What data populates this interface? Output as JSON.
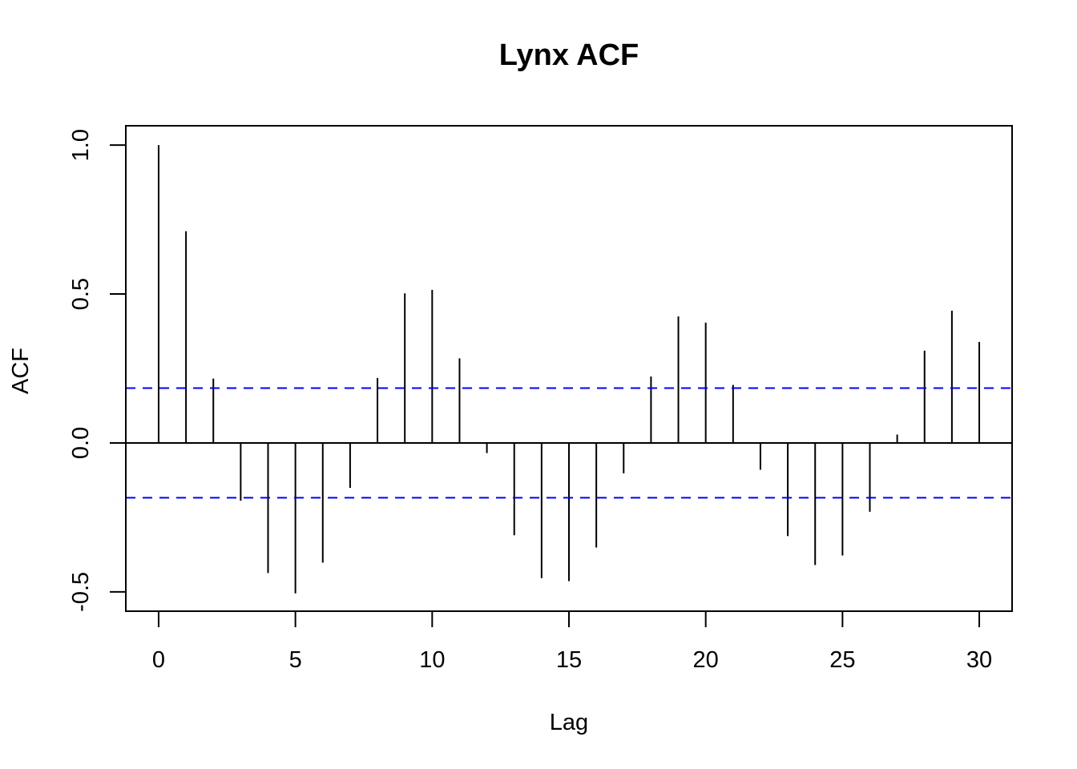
{
  "chart_data": {
    "type": "bar",
    "title": "Lynx ACF",
    "xlabel": "Lag",
    "ylabel": "ACF",
    "xlim": [
      -1.2,
      31.2
    ],
    "ylim": [
      -0.565,
      1.065
    ],
    "x_ticks": [
      0,
      5,
      10,
      15,
      20,
      25,
      30
    ],
    "x_tick_labels": [
      "0",
      "5",
      "10",
      "15",
      "20",
      "25",
      "30"
    ],
    "y_ticks": [
      -0.5,
      0.0,
      0.5,
      1.0
    ],
    "y_tick_labels": [
      "-0.5",
      "0.0",
      "0.5",
      "1.0"
    ],
    "confidence_bound": 0.184,
    "grid": false,
    "legend": "none",
    "colors": {
      "bars": "#000000",
      "confidence_lines": "#0000ff",
      "zero_line": "#000000"
    },
    "lags": [
      0,
      1,
      2,
      3,
      4,
      5,
      6,
      7,
      8,
      9,
      10,
      11,
      12,
      13,
      14,
      15,
      16,
      17,
      18,
      19,
      20,
      21,
      22,
      23,
      24,
      25,
      26,
      27,
      28,
      29,
      30
    ],
    "values": [
      1.0,
      0.711,
      0.216,
      -0.194,
      -0.437,
      -0.505,
      -0.402,
      -0.151,
      0.218,
      0.502,
      0.514,
      0.284,
      -0.034,
      -0.31,
      -0.454,
      -0.464,
      -0.351,
      -0.102,
      0.223,
      0.425,
      0.404,
      0.195,
      -0.09,
      -0.313,
      -0.41,
      -0.378,
      -0.231,
      0.028,
      0.31,
      0.444,
      0.339
    ]
  }
}
